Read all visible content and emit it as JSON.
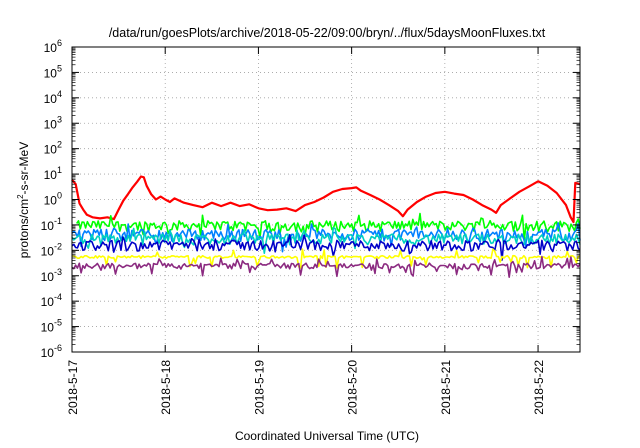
{
  "chart_data": {
    "type": "line",
    "title": "/data/run/goesPlots/archive/2018-05-22/09:00/bryn/../flux/5daysMoonFluxes.txt",
    "xlabel": "Coordinated Universal Time (UTC)",
    "ylabel_parts": {
      "before": "protons/cm",
      "sup": "2",
      "after": "-s-sr-MeV"
    },
    "xlim": [
      0,
      5.45
    ],
    "x_unit": "days since 2018-5-17 00:00 UTC",
    "ylim": [
      1e-06,
      1000000.0
    ],
    "yscale": "log",
    "grid": true,
    "legend": "none",
    "x_ticks": [
      {
        "x": 0,
        "label": "2018-5-17"
      },
      {
        "x": 1,
        "label": "2018-5-18"
      },
      {
        "x": 2,
        "label": "2018-5-19"
      },
      {
        "x": 3,
        "label": "2018-5-20"
      },
      {
        "x": 4,
        "label": "2018-5-21"
      },
      {
        "x": 5,
        "label": "2018-5-22"
      }
    ],
    "y_ticks": [
      {
        "base": "10",
        "exp": "6",
        "value": 1000000.0
      },
      {
        "base": "10",
        "exp": "5",
        "value": 100000.0
      },
      {
        "base": "10",
        "exp": "4",
        "value": 10000.0
      },
      {
        "base": "10",
        "exp": "3",
        "value": 1000.0
      },
      {
        "base": "10",
        "exp": "2",
        "value": 100.0
      },
      {
        "base": "10",
        "exp": "1",
        "value": 10.0
      },
      {
        "base": "10",
        "exp": "0",
        "value": 1
      },
      {
        "base": "10",
        "exp": "-1",
        "value": 0.1
      },
      {
        "base": "10",
        "exp": "-2",
        "value": 0.01
      },
      {
        "base": "10",
        "exp": "-3",
        "value": 0.001
      },
      {
        "base": "10",
        "exp": "-4",
        "value": 0.0001
      },
      {
        "base": "10",
        "exp": "-5",
        "value": 1e-05
      },
      {
        "base": "10",
        "exp": "-6",
        "value": 1e-06
      }
    ],
    "series": [
      {
        "color": "#ff0000",
        "values": [
          [
            0,
            6
          ],
          [
            0.04,
            4
          ],
          [
            0.08,
            0.7
          ],
          [
            0.12,
            0.4
          ],
          [
            0.16,
            0.25
          ],
          [
            0.22,
            0.2
          ],
          [
            0.3,
            0.18
          ],
          [
            0.38,
            0.2
          ],
          [
            0.45,
            0.17
          ],
          [
            0.5,
            0.4
          ],
          [
            0.55,
            0.9
          ],
          [
            0.6,
            1.6
          ],
          [
            0.65,
            3.0
          ],
          [
            0.7,
            5.0
          ],
          [
            0.74,
            8.0
          ],
          [
            0.77,
            7.5
          ],
          [
            0.8,
            3.5
          ],
          [
            0.85,
            1.6
          ],
          [
            0.9,
            1.0
          ],
          [
            0.95,
            1.3
          ],
          [
            1.0,
            1.0
          ],
          [
            1.05,
            0.8
          ],
          [
            1.1,
            1.1
          ],
          [
            1.2,
            0.75
          ],
          [
            1.3,
            0.6
          ],
          [
            1.4,
            0.5
          ],
          [
            1.5,
            0.75
          ],
          [
            1.6,
            0.55
          ],
          [
            1.7,
            0.75
          ],
          [
            1.8,
            0.55
          ],
          [
            1.9,
            0.65
          ],
          [
            2.0,
            0.45
          ],
          [
            2.1,
            0.38
          ],
          [
            2.2,
            0.4
          ],
          [
            2.3,
            0.45
          ],
          [
            2.4,
            0.35
          ],
          [
            2.5,
            0.6
          ],
          [
            2.6,
            0.8
          ],
          [
            2.7,
            1.2
          ],
          [
            2.8,
            2.0
          ],
          [
            2.9,
            2.6
          ],
          [
            3.0,
            2.8
          ],
          [
            3.05,
            3.0
          ],
          [
            3.1,
            2.2
          ],
          [
            3.2,
            1.5
          ],
          [
            3.3,
            1.0
          ],
          [
            3.4,
            0.6
          ],
          [
            3.5,
            0.35
          ],
          [
            3.55,
            0.22
          ],
          [
            3.6,
            0.4
          ],
          [
            3.7,
            0.8
          ],
          [
            3.8,
            1.3
          ],
          [
            3.9,
            1.8
          ],
          [
            4.0,
            2.0
          ],
          [
            4.1,
            1.7
          ],
          [
            4.2,
            1.5
          ],
          [
            4.3,
            1.0
          ],
          [
            4.4,
            0.6
          ],
          [
            4.5,
            0.4
          ],
          [
            4.55,
            0.3
          ],
          [
            4.6,
            0.6
          ],
          [
            4.7,
            1.1
          ],
          [
            4.8,
            2.0
          ],
          [
            4.9,
            3.2
          ],
          [
            5.0,
            5.2
          ],
          [
            5.1,
            3.5
          ],
          [
            5.2,
            1.8
          ],
          [
            5.3,
            0.6
          ],
          [
            5.35,
            0.2
          ],
          [
            5.38,
            0.13
          ],
          [
            5.4,
            4.5
          ],
          [
            5.45,
            4.0
          ]
        ]
      },
      {
        "color": "#00ff00",
        "base": 0.1,
        "amp": 0.45,
        "start": 0.05
      },
      {
        "color": "#0080ff",
        "base": 0.045,
        "amp": 0.5,
        "start": 0.0
      },
      {
        "color": "#00d0c0",
        "base": 0.03,
        "amp": 0.45,
        "start": 0.0
      },
      {
        "color": "#0000c8",
        "base": 0.017,
        "amp": 0.45,
        "start": 0.0
      },
      {
        "color": "#ffff00",
        "base": 0.0055,
        "amp": 0.12,
        "start": 0.0
      },
      {
        "color": "#8b2a80",
        "base": 0.0025,
        "amp": 0.25,
        "start": 0.0
      }
    ]
  }
}
